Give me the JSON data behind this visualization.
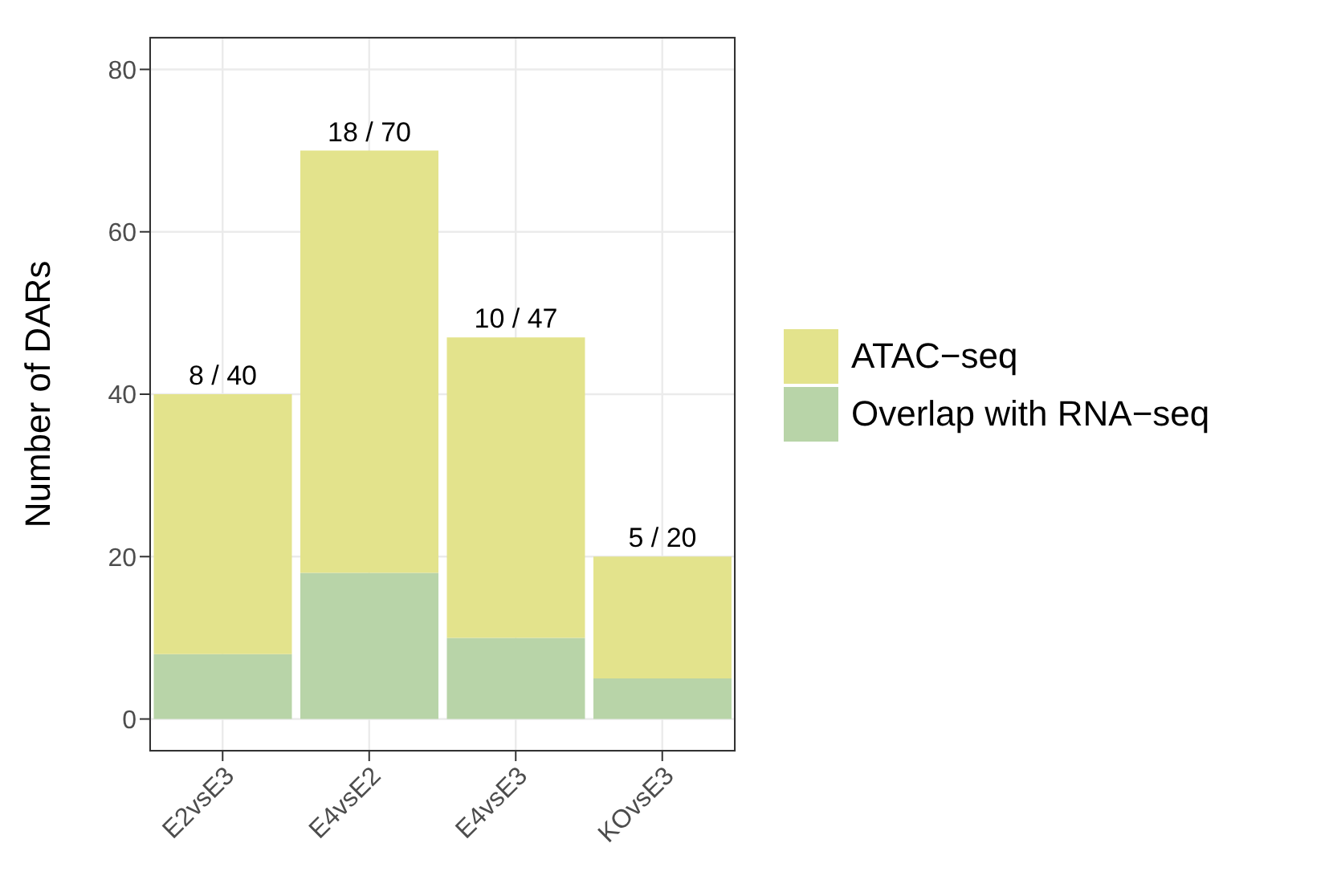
{
  "chart_data": {
    "type": "bar",
    "stacked": true,
    "ylabel": "Number of DARs",
    "categories": [
      "E2vsE3",
      "E4vsE2",
      "E4vsE3",
      "KOvsE3"
    ],
    "series": [
      {
        "name": "Overlap with RNA−seq",
        "color": "#b8d4a8",
        "values": [
          8,
          18,
          10,
          5
        ]
      },
      {
        "name": "ATAC−seq",
        "color": "#e3e38c",
        "values": [
          32,
          52,
          37,
          15
        ]
      }
    ],
    "totals": [
      "8 / 40",
      "18 / 70",
      "10 / 47",
      "5 / 20"
    ],
    "ylim": [
      -4,
      84
    ],
    "yticks": [
      0,
      20,
      40,
      60,
      80
    ],
    "grid": true,
    "legend": "right"
  }
}
